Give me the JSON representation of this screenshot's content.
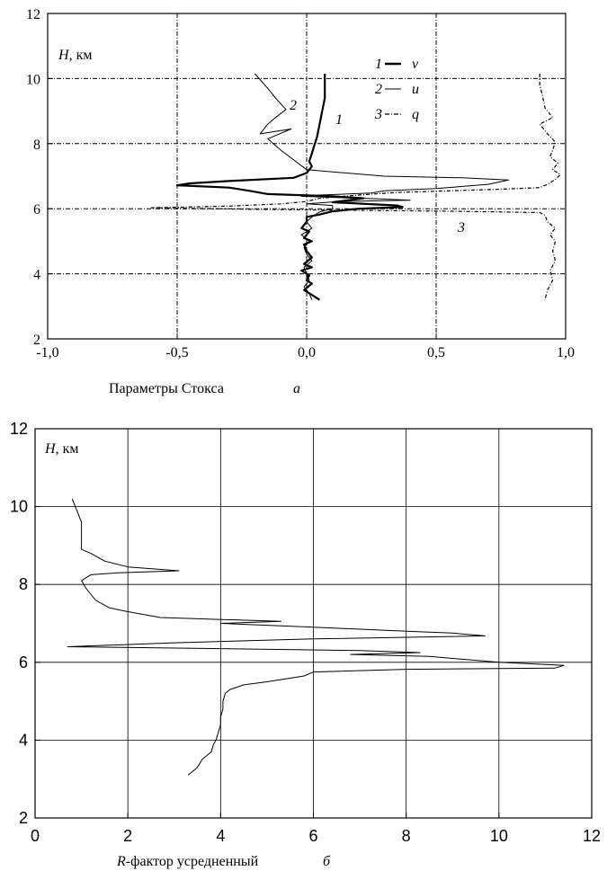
{
  "chart_data": [
    {
      "type": "line",
      "panel_label": "а",
      "ylabel_var": "H",
      "ylabel_unit": ", км",
      "xlabel": "Параметры Стокса",
      "xlim": [
        -1.0,
        1.0
      ],
      "ylim": [
        2,
        12
      ],
      "xticks": [
        -1.0,
        -0.5,
        0.0,
        0.5,
        1.0
      ],
      "xtick_labels": [
        "-1,0",
        "-0,5",
        "0,0",
        "0,5",
        "1,0"
      ],
      "yticks": [
        2,
        4,
        6,
        8,
        10,
        12
      ],
      "ytick_labels": [
        "2",
        "4",
        "6",
        "8",
        "10",
        "12"
      ],
      "grid": true,
      "legend_position": "top-right",
      "series": [
        {
          "name": "v",
          "legend_number": "1",
          "curve_label": "1",
          "style": "thick-solid",
          "points": [
            [
              0.07,
              10.15
            ],
            [
              0.07,
              9.8
            ],
            [
              0.07,
              9.4
            ],
            [
              0.06,
              9.0
            ],
            [
              0.05,
              8.6
            ],
            [
              0.04,
              8.2
            ],
            [
              0.03,
              7.95
            ],
            [
              0.02,
              7.7
            ],
            [
              0.01,
              7.45
            ],
            [
              0.02,
              7.3
            ],
            [
              0.0,
              7.1
            ],
            [
              -0.05,
              6.95
            ],
            [
              -0.3,
              6.85
            ],
            [
              -0.45,
              6.78
            ],
            [
              -0.5,
              6.72
            ],
            [
              -0.3,
              6.65
            ],
            [
              -0.22,
              6.55
            ],
            [
              -0.15,
              6.45
            ],
            [
              0.1,
              6.38
            ],
            [
              0.22,
              6.32
            ],
            [
              0.1,
              6.2
            ],
            [
              0.35,
              6.1
            ],
            [
              0.37,
              6.05
            ],
            [
              0.2,
              6.0
            ],
            [
              0.1,
              5.92
            ],
            [
              0.05,
              5.82
            ],
            [
              0.0,
              5.75
            ],
            [
              0.0,
              5.6
            ],
            [
              -0.01,
              5.5
            ],
            [
              -0.02,
              5.4
            ],
            [
              0.01,
              5.3
            ],
            [
              -0.01,
              5.1
            ],
            [
              0.02,
              5.0
            ],
            [
              -0.01,
              4.9
            ],
            [
              0.0,
              4.7
            ],
            [
              0.02,
              4.5
            ],
            [
              -0.01,
              4.3
            ],
            [
              0.02,
              4.2
            ],
            [
              -0.02,
              4.1
            ],
            [
              0.01,
              3.95
            ],
            [
              0.0,
              3.8
            ],
            [
              0.02,
              3.7
            ],
            [
              -0.01,
              3.5
            ],
            [
              0.02,
              3.35
            ],
            [
              0.05,
              3.2
            ]
          ]
        },
        {
          "name": "u",
          "legend_number": "2",
          "curve_label": "2",
          "style": "thin-solid",
          "points": [
            [
              -0.2,
              10.15
            ],
            [
              -0.15,
              9.7
            ],
            [
              -0.12,
              9.4
            ],
            [
              -0.08,
              9.05
            ],
            [
              -0.12,
              8.8
            ],
            [
              -0.15,
              8.6
            ],
            [
              -0.18,
              8.3
            ],
            [
              -0.06,
              8.45
            ],
            [
              -0.15,
              8.15
            ],
            [
              -0.1,
              7.8
            ],
            [
              -0.05,
              7.5
            ],
            [
              0.0,
              7.2
            ],
            [
              0.3,
              7.0
            ],
            [
              0.6,
              6.95
            ],
            [
              0.78,
              6.88
            ],
            [
              0.7,
              6.75
            ],
            [
              0.5,
              6.62
            ],
            [
              0.3,
              6.55
            ],
            [
              0.25,
              6.48
            ],
            [
              0.05,
              6.42
            ],
            [
              -0.02,
              6.38
            ],
            [
              0.28,
              6.3
            ],
            [
              0.4,
              6.26
            ],
            [
              0.12,
              6.22
            ],
            [
              0.0,
              6.15
            ],
            [
              0.1,
              6.1
            ],
            [
              0.1,
              6.0
            ],
            [
              0.05,
              5.9
            ],
            [
              0.02,
              5.75
            ],
            [
              0.0,
              5.6
            ],
            [
              0.02,
              5.4
            ],
            [
              -0.02,
              5.2
            ],
            [
              0.01,
              5.0
            ],
            [
              -0.01,
              4.8
            ],
            [
              0.0,
              4.6
            ],
            [
              0.02,
              4.4
            ],
            [
              -0.01,
              4.2
            ],
            [
              0.0,
              4.0
            ],
            [
              0.01,
              3.8
            ],
            [
              -0.01,
              3.6
            ],
            [
              0.01,
              3.4
            ],
            [
              0.02,
              3.2
            ]
          ]
        },
        {
          "name": "q",
          "legend_number": "3",
          "curve_label": "3",
          "style": "dash-dot",
          "points": [
            [
              0.9,
              10.15
            ],
            [
              0.9,
              9.8
            ],
            [
              0.91,
              9.5
            ],
            [
              0.92,
              9.1
            ],
            [
              0.95,
              8.8
            ],
            [
              0.9,
              8.6
            ],
            [
              0.93,
              8.3
            ],
            [
              0.96,
              8.05
            ],
            [
              0.95,
              7.8
            ],
            [
              0.94,
              7.6
            ],
            [
              0.97,
              7.4
            ],
            [
              0.95,
              7.2
            ],
            [
              0.98,
              7.05
            ],
            [
              0.96,
              6.9
            ],
            [
              0.93,
              6.75
            ],
            [
              0.9,
              6.65
            ],
            [
              0.75,
              6.6
            ],
            [
              0.55,
              6.55
            ],
            [
              0.35,
              6.5
            ],
            [
              0.2,
              6.42
            ],
            [
              0.05,
              6.32
            ],
            [
              0.0,
              6.22
            ],
            [
              -0.1,
              6.15
            ],
            [
              -0.3,
              6.08
            ],
            [
              -0.6,
              6.03
            ],
            [
              -0.2,
              5.98
            ],
            [
              0.2,
              5.95
            ],
            [
              0.6,
              5.92
            ],
            [
              0.9,
              5.88
            ],
            [
              0.92,
              5.8
            ],
            [
              0.93,
              5.6
            ],
            [
              0.96,
              5.4
            ],
            [
              0.94,
              5.2
            ],
            [
              0.96,
              5.0
            ],
            [
              0.95,
              4.7
            ],
            [
              0.96,
              4.4
            ],
            [
              0.94,
              4.1
            ],
            [
              0.95,
              3.8
            ],
            [
              0.93,
              3.5
            ],
            [
              0.92,
              3.2
            ]
          ]
        }
      ]
    },
    {
      "type": "line",
      "panel_label": "б",
      "ylabel_var": "H",
      "ylabel_unit": ", км",
      "xlabel_var": "R",
      "xlabel_rest": "-фактор усредненный",
      "xlim": [
        0,
        12
      ],
      "ylim": [
        2,
        12
      ],
      "xticks": [
        0,
        2,
        4,
        6,
        8,
        10,
        12
      ],
      "xtick_labels": [
        "0",
        "2",
        "4",
        "6",
        "8",
        "10",
        "12"
      ],
      "yticks": [
        2,
        4,
        6,
        8,
        10,
        12
      ],
      "ytick_labels": [
        "2",
        "4",
        "6",
        "8",
        "10",
        "12"
      ],
      "grid": true,
      "series": [
        {
          "style": "thin-solid",
          "points": [
            [
              0.8,
              10.2
            ],
            [
              1.0,
              9.6
            ],
            [
              1.0,
              8.9
            ],
            [
              1.2,
              8.8
            ],
            [
              1.5,
              8.6
            ],
            [
              2.0,
              8.45
            ],
            [
              3.1,
              8.35
            ],
            [
              1.8,
              8.3
            ],
            [
              1.2,
              8.25
            ],
            [
              1.0,
              8.1
            ],
            [
              1.1,
              7.9
            ],
            [
              1.3,
              7.6
            ],
            [
              1.6,
              7.4
            ],
            [
              2.0,
              7.3
            ],
            [
              2.7,
              7.15
            ],
            [
              5.3,
              7.05
            ],
            [
              4.0,
              7.0
            ],
            [
              6.0,
              6.9
            ],
            [
              8.0,
              6.8
            ],
            [
              9.0,
              6.75
            ],
            [
              9.7,
              6.68
            ],
            [
              6.0,
              6.6
            ],
            [
              3.0,
              6.5
            ],
            [
              0.7,
              6.4
            ],
            [
              4.0,
              6.35
            ],
            [
              7.0,
              6.3
            ],
            [
              8.3,
              6.25
            ],
            [
              6.8,
              6.2
            ],
            [
              8.5,
              6.15
            ],
            [
              10.0,
              6.0
            ],
            [
              11.4,
              5.92
            ],
            [
              11.2,
              5.85
            ],
            [
              8.0,
              5.82
            ],
            [
              6.0,
              5.75
            ],
            [
              5.8,
              5.65
            ],
            [
              5.0,
              5.5
            ],
            [
              4.5,
              5.42
            ],
            [
              4.2,
              5.3
            ],
            [
              4.1,
              5.2
            ],
            [
              4.05,
              5.0
            ],
            [
              4.05,
              4.8
            ],
            [
              4.0,
              4.6
            ],
            [
              4.0,
              4.4
            ],
            [
              3.95,
              4.2
            ],
            [
              3.9,
              4.0
            ],
            [
              3.85,
              3.9
            ],
            [
              3.8,
              3.7
            ],
            [
              3.6,
              3.5
            ],
            [
              3.5,
              3.3
            ],
            [
              3.3,
              3.1
            ]
          ]
        }
      ]
    }
  ]
}
